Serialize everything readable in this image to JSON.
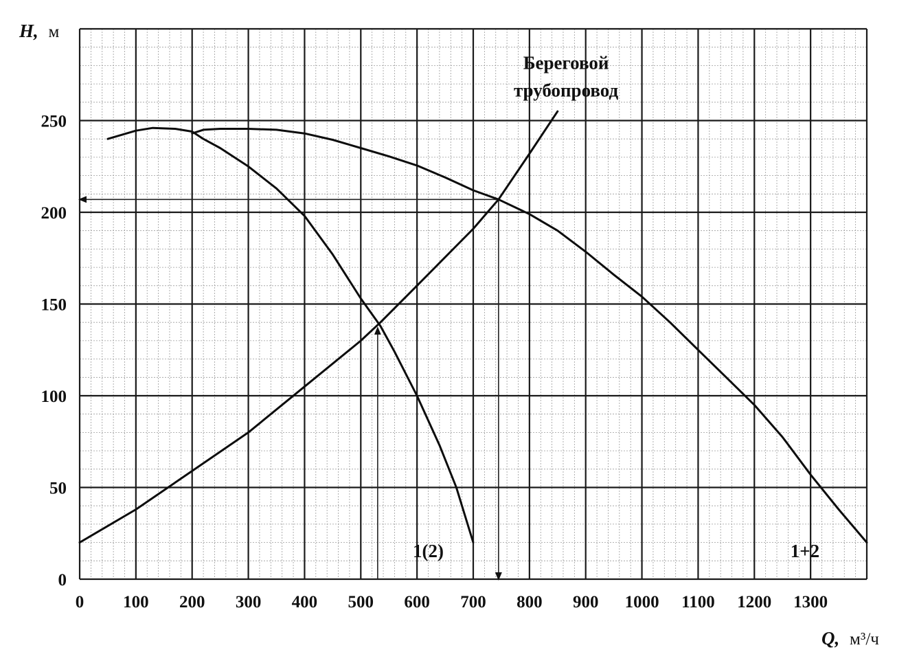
{
  "chart_data": {
    "type": "line",
    "ylabel_symbol": "H,",
    "ylabel_unit": "м",
    "xlabel_symbol": "Q,",
    "xlabel_unit": "м³/ч",
    "xlim": [
      0,
      1400
    ],
    "ylim": [
      0,
      300
    ],
    "x_ticks": [
      "0",
      "100",
      "200",
      "300",
      "400",
      "500",
      "600",
      "700",
      "800",
      "900",
      "1000",
      "1100",
      "1200",
      "1300"
    ],
    "x_tick_values": [
      0,
      100,
      200,
      300,
      400,
      500,
      600,
      700,
      800,
      900,
      1000,
      1100,
      1200,
      1300
    ],
    "y_ticks": [
      "0",
      "50",
      "100",
      "150",
      "200",
      "250"
    ],
    "y_tick_values": [
      0,
      50,
      100,
      150,
      200,
      250
    ],
    "grid": true,
    "series": [
      {
        "name": "1(2)",
        "x": [
          50,
          100,
          130,
          170,
          200,
          220,
          250,
          300,
          350,
          400,
          450,
          500,
          535,
          560,
          600,
          640,
          670,
          700
        ],
        "y": [
          240,
          244.5,
          246,
          245.5,
          244,
          240,
          235,
          225,
          213,
          198,
          177,
          153,
          138,
          124,
          100,
          73,
          50,
          20
        ]
      },
      {
        "name": "1+2",
        "x": [
          200,
          220,
          250,
          300,
          350,
          400,
          450,
          500,
          550,
          600,
          650,
          700,
          745,
          800,
          850,
          900,
          950,
          1000,
          1050,
          1100,
          1150,
          1200,
          1250,
          1300,
          1350,
          1400
        ],
        "y": [
          243,
          245,
          245.5,
          245.5,
          245,
          243,
          239.5,
          235,
          230.5,
          225.5,
          219,
          212,
          207,
          199,
          190,
          178.5,
          166,
          154,
          140,
          125,
          110,
          95,
          77.5,
          57,
          38,
          20
        ]
      },
      {
        "name": "Береговой трубопровод",
        "x": [
          0,
          100,
          200,
          300,
          400,
          500,
          535,
          600,
          700,
          745,
          800,
          850
        ],
        "y": [
          20,
          38,
          59,
          80,
          105,
          130,
          140,
          160,
          191,
          207,
          232,
          255
        ]
      }
    ],
    "curve_labels": [
      {
        "series": 0,
        "text": "1(2)",
        "x": 620,
        "y": 12
      },
      {
        "series": 1,
        "text": "1+2",
        "x": 1290,
        "y": 12
      },
      {
        "series": 2,
        "text_line1": "Береговой",
        "text_line2": "трубопровод",
        "x": 865,
        "y": 278
      }
    ],
    "guides": [
      {
        "kind": "horizontal-arrow",
        "from_x": 745,
        "to_x": 0,
        "y": 207
      },
      {
        "kind": "vertical-arrow",
        "x": 745,
        "from_y": 207,
        "to_y": 0
      },
      {
        "kind": "vertical-arrow-up",
        "x": 530,
        "from_y": 0,
        "to_y": 137
      }
    ]
  }
}
